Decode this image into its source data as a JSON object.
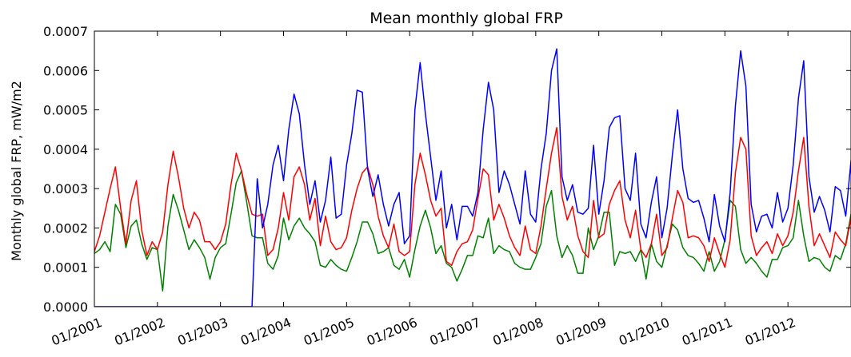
{
  "chart_data": {
    "type": "line",
    "title": "Mean monthly global FRP",
    "xlabel": "",
    "ylabel": "Monthly global FRP, mW/m2",
    "ylim": [
      0,
      0.0007
    ],
    "xlim": [
      "2001-01",
      "2013-01"
    ],
    "yticks": [
      "0.0000",
      "0.0001",
      "0.0002",
      "0.0003",
      "0.0004",
      "0.0005",
      "0.0006",
      "0.0007"
    ],
    "xticks": [
      "01/2001",
      "01/2002",
      "01/2003",
      "01/2004",
      "01/2005",
      "01/2006",
      "01/2007",
      "01/2008",
      "01/2009",
      "01/2010",
      "01/2011",
      "01/2012"
    ],
    "grid": false,
    "legend": "none",
    "x_start": "2000-11",
    "series": [
      {
        "color": "#0000ff",
        "values": [
          0,
          0,
          0,
          0,
          0,
          0,
          0,
          0,
          0,
          0,
          0,
          0,
          0,
          0,
          0,
          0,
          0,
          0,
          0,
          0,
          0,
          0,
          0,
          0,
          0,
          0,
          0,
          0,
          0,
          0,
          0,
          0,
          0,
          0.000325,
          0.0002,
          0.00026,
          0.00036,
          0.00041,
          0.00032,
          0.00045,
          0.00054,
          0.00049,
          0.00036,
          0.00026,
          0.00032,
          0.000215,
          0.00027,
          0.00038,
          0.000225,
          0.000235,
          0.00036,
          0.00044,
          0.00055,
          0.000545,
          0.00035,
          0.00028,
          0.000335,
          0.00026,
          0.000205,
          0.00026,
          0.00029,
          0.00016,
          0.00018,
          0.0005,
          0.00062,
          0.00049,
          0.00038,
          0.00027,
          0.000345,
          0.0002,
          0.00026,
          0.00017,
          0.000255,
          0.000255,
          0.00023,
          0.00029,
          0.00045,
          0.00057,
          0.0005,
          0.00029,
          0.000345,
          0.00031,
          0.00026,
          0.00021,
          0.000345,
          0.000235,
          0.000215,
          0.00035,
          0.00044,
          0.0006,
          0.000655,
          0.00033,
          0.00027,
          0.00031,
          0.00024,
          0.000235,
          0.00025,
          0.00041,
          0.000235,
          0.00032,
          0.000455,
          0.00048,
          0.000485,
          0.0003,
          0.00027,
          0.00039,
          0.00021,
          0.000175,
          0.000265,
          0.00033,
          0.000175,
          0.00025,
          0.000385,
          0.0005,
          0.00035,
          0.000275,
          0.000265,
          0.00027,
          0.000225,
          0.000165,
          0.000285,
          0.000205,
          0.000165,
          0.00029,
          0.00051,
          0.00065,
          0.00056,
          0.00026,
          0.00019,
          0.00023,
          0.000235,
          0.0002,
          0.00029,
          0.000215,
          0.00025,
          0.00036,
          0.00053,
          0.000625,
          0.00033,
          0.00024,
          0.00028,
          0.000245,
          0.00019,
          0.000305,
          0.000295,
          0.00023,
          0.00037,
          0.00047,
          0.00055,
          0.00048,
          0.00027
        ]
      },
      {
        "color": "#ff0000",
        "values": [
          0.00019,
          0.00014,
          0.00014,
          0.00018,
          0.00024,
          0.0003,
          0.000355,
          0.00025,
          0.00016,
          0.00027,
          0.00032,
          0.000195,
          0.00013,
          0.000165,
          0.000145,
          0.00019,
          0.00031,
          0.000395,
          0.00033,
          0.00025,
          0.0002,
          0.00024,
          0.00022,
          0.000165,
          0.000165,
          0.000145,
          0.000165,
          0.00021,
          0.00031,
          0.00039,
          0.000345,
          0.000285,
          0.000235,
          0.00023,
          0.000235,
          0.00013,
          0.000145,
          0.0002,
          0.00029,
          0.00022,
          0.00033,
          0.000355,
          0.00031,
          0.00022,
          0.000275,
          0.000155,
          0.00023,
          0.000165,
          0.000145,
          0.00015,
          0.000175,
          0.000245,
          0.0003,
          0.00034,
          0.000355,
          0.00031,
          0.00023,
          0.00018,
          0.00015,
          0.00021,
          0.00014,
          0.00013,
          0.00014,
          0.00031,
          0.00039,
          0.000335,
          0.00027,
          0.00023,
          0.00025,
          0.000115,
          0.000105,
          0.00014,
          0.00016,
          0.000165,
          0.000195,
          0.000275,
          0.00035,
          0.000335,
          0.00022,
          0.00026,
          0.000225,
          0.00018,
          0.00015,
          0.00013,
          0.000205,
          0.000145,
          0.000135,
          0.000205,
          0.0003,
          0.00039,
          0.000455,
          0.00028,
          0.00022,
          0.000255,
          0.00018,
          0.00014,
          0.000125,
          0.00027,
          0.000175,
          0.000185,
          0.00026,
          0.000295,
          0.00032,
          0.00022,
          0.000175,
          0.000245,
          0.000145,
          0.000125,
          0.00016,
          0.000235,
          0.00013,
          0.00015,
          0.000225,
          0.000295,
          0.000265,
          0.000175,
          0.00018,
          0.000175,
          0.000155,
          0.000115,
          0.000175,
          0.000135,
          0.0001,
          0.00017,
          0.00034,
          0.00043,
          0.0004,
          0.00018,
          0.00013,
          0.00015,
          0.000165,
          0.000135,
          0.000185,
          0.000155,
          0.00018,
          0.00024,
          0.000345,
          0.00043,
          0.000255,
          0.000155,
          0.000185,
          0.000155,
          0.000125,
          0.00019,
          0.00017,
          0.000155,
          0.000225,
          0.00032,
          0.00036,
          0.000335,
          0.00023
        ]
      },
      {
        "color": "#008000",
        "values": [
          0.000195,
          0.000115,
          0.000135,
          0.000145,
          0.000165,
          0.00014,
          0.00026,
          0.000235,
          0.00015,
          0.000205,
          0.00022,
          0.00016,
          0.00012,
          0.00015,
          0.000145,
          4e-05,
          0.000205,
          0.000285,
          0.000245,
          0.000195,
          0.000145,
          0.00017,
          0.00015,
          0.000125,
          7e-05,
          0.000125,
          0.00015,
          0.00016,
          0.000235,
          0.000315,
          0.000345,
          0.000265,
          0.00018,
          0.000175,
          0.000175,
          0.00011,
          9.5e-05,
          0.00013,
          0.000225,
          0.00017,
          0.000205,
          0.000225,
          0.0002,
          0.000185,
          0.000165,
          0.000105,
          0.0001,
          0.00012,
          0.000105,
          9.5e-05,
          9e-05,
          0.000125,
          0.000165,
          0.000215,
          0.000215,
          0.000185,
          0.000135,
          0.00014,
          0.00015,
          0.000105,
          9.5e-05,
          0.00012,
          7.5e-05,
          0.000145,
          0.000205,
          0.000245,
          0.0002,
          0.000135,
          0.000155,
          0.00011,
          0.0001,
          6.5e-05,
          9.5e-05,
          0.00013,
          0.00013,
          0.00018,
          0.000175,
          0.000225,
          0.000135,
          0.000155,
          0.000145,
          0.00014,
          0.00011,
          0.0001,
          9.5e-05,
          9.5e-05,
          0.000125,
          0.00016,
          0.000255,
          0.000295,
          0.00018,
          0.000125,
          0.000155,
          0.00013,
          8.5e-05,
          8.5e-05,
          0.0002,
          0.000145,
          0.00018,
          0.00024,
          0.00024,
          0.000105,
          0.00014,
          0.000135,
          0.00014,
          0.000115,
          0.000145,
          7e-05,
          0.00016,
          0.000115,
          0.0001,
          0.000155,
          0.00021,
          0.000195,
          0.00015,
          0.00013,
          0.000125,
          0.00011,
          9e-05,
          0.00014,
          9e-05,
          0.000115,
          0.00017,
          0.00027,
          0.000255,
          0.000145,
          0.00011,
          0.000125,
          0.00011,
          9e-05,
          7.5e-05,
          0.00012,
          0.00012,
          0.00015,
          0.000155,
          0.000175,
          0.00027,
          0.00018,
          0.000115,
          0.000125,
          0.00012,
          0.0001,
          9e-05,
          0.00013,
          0.00012,
          0.00016,
          0.000235,
          0.00024,
          0.000235,
          0.00021,
          0.00015
        ]
      }
    ]
  }
}
